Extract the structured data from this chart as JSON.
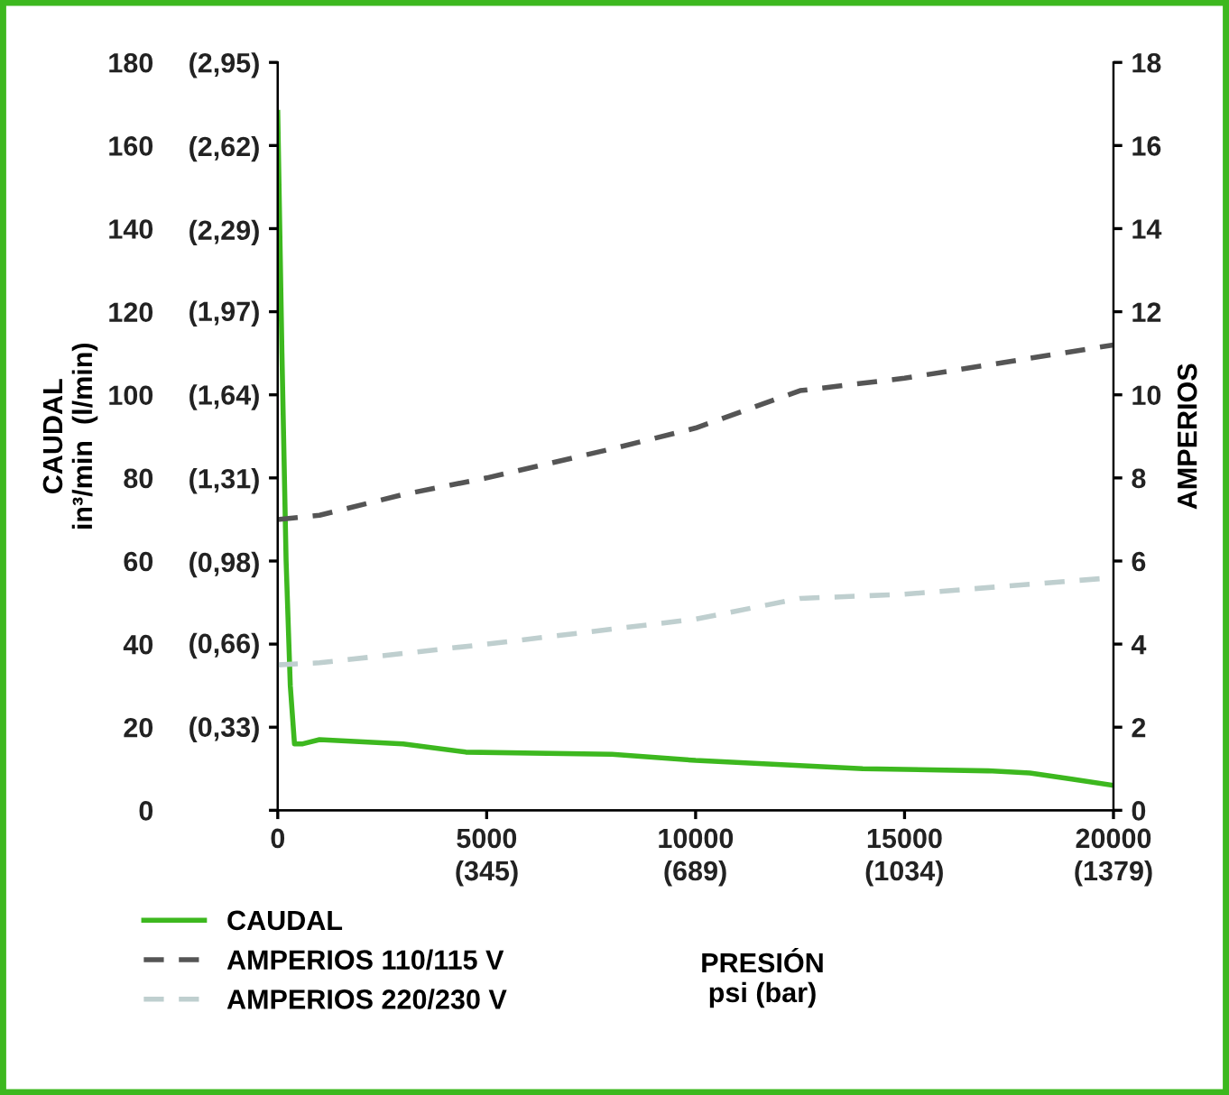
{
  "chart_data": {
    "type": "line",
    "xlabel": "PRESIÓN\npsi (bar)",
    "ylabel": "CAUDAL\nin³/min  (l/min)",
    "y2label": "AMPERIOS",
    "xlim": [
      0,
      20000
    ],
    "xticks": [
      0,
      5000,
      10000,
      15000,
      20000
    ],
    "x2lim": [
      0,
      1379
    ],
    "x2ticks": [
      {
        "value": 345,
        "label": "(345)"
      },
      {
        "value": 689,
        "label": "(689)"
      },
      {
        "value": 1034,
        "label": "(1034)"
      },
      {
        "value": 1379,
        "label": "(1379)"
      }
    ],
    "ylim": [
      0,
      180
    ],
    "yticks": [
      0,
      20,
      40,
      60,
      80,
      100,
      120,
      140,
      160,
      180
    ],
    "y3lim": [
      0,
      2.95
    ],
    "y3ticks": [
      {
        "value": 0.33,
        "label": "(0,33)"
      },
      {
        "value": 0.66,
        "label": "(0,66)"
      },
      {
        "value": 0.98,
        "label": "(0,98)"
      },
      {
        "value": 1.31,
        "label": "(1,31)"
      },
      {
        "value": 1.64,
        "label": "(1,64)"
      },
      {
        "value": 1.97,
        "label": "(1,97)"
      },
      {
        "value": 2.29,
        "label": "(2,29)"
      },
      {
        "value": 2.62,
        "label": "(2,62)"
      },
      {
        "value": 2.95,
        "label": "(2,95)"
      }
    ],
    "y2lim": [
      0,
      18
    ],
    "y2ticks": [
      0,
      2,
      4,
      6,
      8,
      10,
      12,
      14,
      16,
      18
    ],
    "grid": false,
    "legend": "bottom left",
    "series": [
      {
        "name": "CAUDAL",
        "color": "#3db81f",
        "line_style": "solid",
        "x": [
          0,
          100,
          200,
          300,
          400,
          600,
          1000,
          3000,
          4500,
          8000,
          10000,
          14000,
          17000,
          18000,
          19000,
          20000
        ],
        "values": [
          168,
          110,
          60,
          30,
          16,
          16,
          17,
          16,
          14,
          13.5,
          12,
          10,
          9.5,
          9,
          7.5,
          6
        ]
      },
      {
        "name": "AMPERIOS 110/115 V",
        "color": "#555555",
        "line_style": "dashed",
        "axis": "y2",
        "x": [
          0,
          1000,
          3000,
          5000,
          8000,
          10000,
          12500,
          15000,
          20000
        ],
        "values": [
          7.0,
          7.1,
          7.6,
          8.0,
          8.7,
          9.2,
          10.1,
          10.4,
          11.2
        ]
      },
      {
        "name": "AMPERIOS 220/230 V",
        "color": "#bfcfcf",
        "line_style": "dashed",
        "axis": "y2",
        "x": [
          0,
          1000,
          5000,
          10000,
          12500,
          15000,
          20000
        ],
        "values": [
          3.5,
          3.55,
          4.0,
          4.6,
          5.1,
          5.2,
          5.6
        ]
      }
    ]
  }
}
